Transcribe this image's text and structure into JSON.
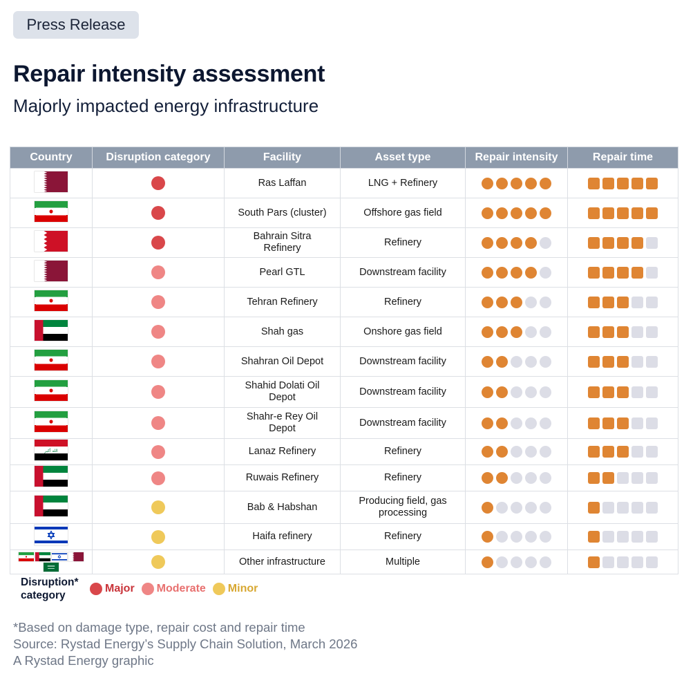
{
  "badge": "Press Release",
  "title": "Repair intensity assessment",
  "subtitle": "Majorly impacted energy infrastructure",
  "colors": {
    "header_bg": "#8e9bac",
    "major": "#d9474a",
    "moderate": "#ef8685",
    "minor": "#efc95a",
    "filled_dot": "#df8533",
    "empty_dot": "#dcdde6"
  },
  "chart_data": {
    "type": "table",
    "columns": [
      "Country",
      "Disruption category",
      "Facility",
      "Asset type",
      "Repair intensity",
      "Repair time"
    ],
    "scale_max": 5,
    "rows": [
      {
        "country_flags": [
          "qatar"
        ],
        "category": "Major",
        "facility": "Ras Laffan",
        "asset_type": "LNG + Refinery",
        "repair_intensity": 5,
        "repair_time": 5
      },
      {
        "country_flags": [
          "iran"
        ],
        "category": "Major",
        "facility": "South Pars (cluster)",
        "asset_type": "Offshore gas field",
        "repair_intensity": 5,
        "repair_time": 5
      },
      {
        "country_flags": [
          "bahrain"
        ],
        "category": "Major",
        "facility": "Bahrain Sitra Refinery",
        "asset_type": "Refinery",
        "repair_intensity": 4,
        "repair_time": 4
      },
      {
        "country_flags": [
          "qatar"
        ],
        "category": "Moderate",
        "facility": "Pearl GTL",
        "asset_type": "Downstream facility",
        "repair_intensity": 4,
        "repair_time": 4
      },
      {
        "country_flags": [
          "iran"
        ],
        "category": "Moderate",
        "facility": "Tehran Refinery",
        "asset_type": "Refinery",
        "repair_intensity": 3,
        "repair_time": 3
      },
      {
        "country_flags": [
          "uae"
        ],
        "category": "Moderate",
        "facility": "Shah gas",
        "asset_type": "Onshore gas field",
        "repair_intensity": 3,
        "repair_time": 3
      },
      {
        "country_flags": [
          "iran"
        ],
        "category": "Moderate",
        "facility": "Shahran Oil Depot",
        "asset_type": "Downstream facility",
        "repair_intensity": 2,
        "repair_time": 3
      },
      {
        "country_flags": [
          "iran"
        ],
        "category": "Moderate",
        "facility": "Shahid Dolati Oil Depot",
        "asset_type": "Downstream facility",
        "repair_intensity": 2,
        "repair_time": 3
      },
      {
        "country_flags": [
          "iran"
        ],
        "category": "Moderate",
        "facility": "Shahr-e Rey Oil Depot",
        "asset_type": "Downstream facility",
        "repair_intensity": 2,
        "repair_time": 3
      },
      {
        "country_flags": [
          "iraq"
        ],
        "category": "Moderate",
        "facility": "Lanaz Refinery",
        "asset_type": "Refinery",
        "repair_intensity": 2,
        "repair_time": 3
      },
      {
        "country_flags": [
          "uae"
        ],
        "category": "Moderate",
        "facility": "Ruwais Refinery",
        "asset_type": "Refinery",
        "repair_intensity": 2,
        "repair_time": 2
      },
      {
        "country_flags": [
          "uae"
        ],
        "category": "Minor",
        "facility": "Bab & Habshan",
        "asset_type": "Producing field, gas processing",
        "repair_intensity": 1,
        "repair_time": 1
      },
      {
        "country_flags": [
          "israel"
        ],
        "category": "Minor",
        "facility": "Haifa refinery",
        "asset_type": "Refinery",
        "repair_intensity": 1,
        "repair_time": 1
      },
      {
        "country_flags": [
          "iran",
          "uae",
          "israel",
          "qatar",
          "saudi"
        ],
        "category": "Minor",
        "facility": "Other infrastructure",
        "asset_type": "Multiple",
        "repair_intensity": 1,
        "repair_time": 1
      }
    ]
  },
  "legend": {
    "title": "Disruption* category",
    "items": [
      {
        "label": "Major",
        "color": "#d9474a",
        "text_color": "#c9343a"
      },
      {
        "label": "Moderate",
        "color": "#ef8685",
        "text_color": "#e8706f"
      },
      {
        "label": "Minor",
        "color": "#efc95a",
        "text_color": "#d8a832"
      }
    ]
  },
  "notes": [
    "*Based on damage type, repair cost and repair time",
    "Source: Rystad Energy’s Supply Chain Solution, March 2026",
    "A Rystad Energy graphic"
  ]
}
